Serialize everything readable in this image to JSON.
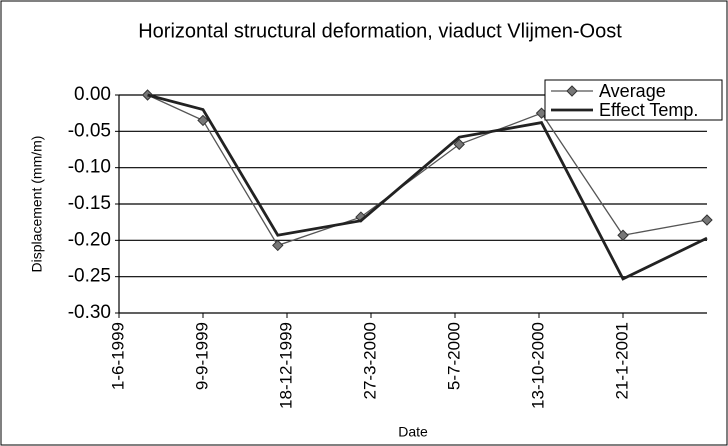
{
  "chart_data": {
    "type": "line",
    "title": "Horizontal structural deformation, viaduct Vlijmen-Oost",
    "x_label": "Date",
    "y_label": "Displacement (mm/m)",
    "x": [
      "5-7-1999",
      "9-9-1999",
      "7-12-1999",
      "15-3-2000",
      "10-7-2000",
      "16-10-2000",
      "21-1-2001",
      "1-5-2001"
    ],
    "series": [
      {
        "name": "Average",
        "color": "#555555",
        "marker": "diamond",
        "values": [
          0.0,
          -0.035,
          -0.207,
          -0.168,
          -0.068,
          -0.025,
          -0.193,
          -0.172
        ]
      },
      {
        "name": "Effect Temp.",
        "color": "#222222",
        "values": [
          0.0,
          -0.02,
          -0.193,
          -0.173,
          -0.058,
          -0.038,
          -0.253,
          -0.197
        ]
      }
    ],
    "xlim": [
      "1-6-1999",
      "1-5-2001"
    ],
    "xticks": [
      "1-6-1999",
      "9-9-1999",
      "18-12-1999",
      "27-3-2000",
      "5-7-2000",
      "13-10-2000",
      "21-1-2001"
    ],
    "ylim": [
      -0.3,
      0.0
    ],
    "yticks": [
      {
        "value": 0.0,
        "label": "0.00"
      },
      {
        "value": -0.05,
        "label": "-0.05"
      },
      {
        "value": -0.1,
        "label": "-0.10"
      },
      {
        "value": -0.15,
        "label": "-0.15"
      },
      {
        "value": -0.2,
        "label": "-0.20"
      },
      {
        "value": -0.25,
        "label": "-0.25"
      },
      {
        "value": -0.3,
        "label": "-0.30"
      }
    ],
    "grid": true,
    "legend": "upper right"
  }
}
